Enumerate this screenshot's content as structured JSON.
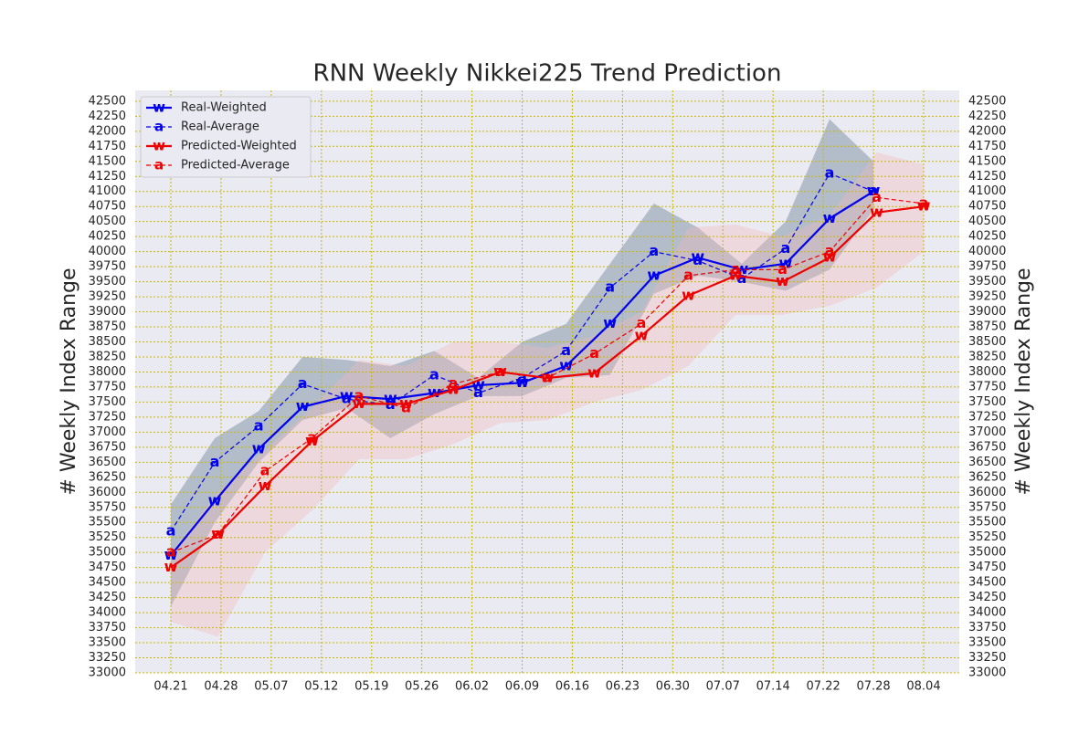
{
  "chart_data": {
    "type": "line",
    "title": "RNN Weekly Nikkei225 Trend Prediction",
    "ylabel": "# Weekly Index Range",
    "y2label": "# Weekly Index Range",
    "xticks": [
      {
        "value": 0,
        "label": "04.21"
      },
      {
        "value": 1,
        "label": "04.28"
      },
      {
        "value": 2,
        "label": "05.07"
      },
      {
        "value": 3,
        "label": "05.12"
      },
      {
        "value": 4,
        "label": "05.19"
      },
      {
        "value": 5,
        "label": "05.26"
      },
      {
        "value": 6,
        "label": "06.02"
      },
      {
        "value": 7,
        "label": "06.09"
      },
      {
        "value": 8,
        "label": "06.16"
      },
      {
        "value": 9,
        "label": "06.23"
      },
      {
        "value": 10,
        "label": "06.30"
      },
      {
        "value": 11,
        "label": "07.07"
      },
      {
        "value": 12,
        "label": "07.14"
      },
      {
        "value": 13,
        "label": "07.22"
      },
      {
        "value": 14,
        "label": "07.28"
      },
      {
        "value": 15,
        "label": "08.04"
      }
    ],
    "xlim": [
      -0.71,
      15.71
    ],
    "ylim": [
      33000,
      42680
    ],
    "yticks": [
      33000,
      33250,
      33500,
      33750,
      34000,
      34250,
      34500,
      34750,
      35000,
      35250,
      35500,
      35750,
      36000,
      36250,
      36500,
      36750,
      37000,
      37250,
      37500,
      37750,
      38000,
      38250,
      38500,
      38750,
      39000,
      39250,
      39500,
      39750,
      40000,
      40250,
      40500,
      40750,
      41000,
      41250,
      41500,
      41750,
      42000,
      42250,
      42500
    ],
    "y2lim": [
      33000,
      42680
    ],
    "y2ticks": [
      33000,
      33250,
      33500,
      33750,
      34000,
      34250,
      34500,
      34750,
      35000,
      35250,
      35500,
      35750,
      36000,
      36250,
      36500,
      36750,
      37000,
      37250,
      37500,
      37750,
      38000,
      38250,
      38500,
      38750,
      39000,
      39250,
      39500,
      39750,
      40000,
      40250,
      40500,
      40750,
      41000,
      41250,
      41500,
      41750,
      42000,
      42250,
      42500
    ],
    "grid": true,
    "legend": "upper left",
    "bands": [
      {
        "color": "#7a8fa0",
        "x": [
          0,
          0.875,
          1.75,
          2.625,
          3.5,
          4.375,
          5.25,
          6.125,
          7,
          7.875,
          8.75,
          9.625,
          10.5,
          11.375,
          12.25,
          13.125,
          14
        ],
        "upper": [
          35800,
          36900,
          37350,
          38250,
          38200,
          38100,
          38350,
          37900,
          38500,
          38800,
          39800,
          40800,
          40400,
          39800,
          40500,
          42200,
          41500
        ],
        "lower": [
          34100,
          35500,
          36500,
          37200,
          37400,
          36900,
          37300,
          37600,
          37600,
          37900,
          37950,
          39300,
          39600,
          39500,
          39350,
          39700,
          40700
        ]
      },
      {
        "color": "#f4b8b8",
        "x": [
          0,
          0.9375,
          1.875,
          2.8125,
          3.75,
          4.6875,
          5.625,
          6.5625,
          7.5,
          8.4375,
          9.375,
          10.3125,
          11.25,
          12.1875,
          13.125,
          14.0625,
          15
        ],
        "upper": [
          35000,
          36000,
          36700,
          37400,
          38200,
          38100,
          38500,
          38500,
          38400,
          38600,
          39000,
          40400,
          40450,
          40250,
          40600,
          41650,
          41450
        ],
        "lower": [
          33850,
          33600,
          35000,
          35700,
          36550,
          36550,
          36800,
          37150,
          37200,
          37500,
          37700,
          38100,
          38950,
          38950,
          39100,
          39400,
          40000
        ]
      }
    ],
    "series": [
      {
        "name": "Real-Weighted",
        "color": "#0000ee",
        "linestyle": "solid",
        "marker": "w",
        "x": [
          0,
          0.875,
          1.75,
          2.625,
          3.5,
          4.375,
          5.25,
          6.125,
          7,
          7.875,
          8.75,
          9.625,
          10.5,
          11.375,
          12.25,
          13.125,
          14
        ],
        "values": [
          34950,
          35850,
          36720,
          37420,
          37600,
          37550,
          37650,
          37780,
          37820,
          38100,
          38800,
          39600,
          39900,
          39700,
          39800,
          40550,
          41000
        ]
      },
      {
        "name": "Real-Average",
        "color": "#0000ee",
        "linestyle": "dashed",
        "marker": "a",
        "x": [
          0,
          0.875,
          1.75,
          2.625,
          3.5,
          4.375,
          5.25,
          6.125,
          7,
          7.875,
          8.75,
          9.625,
          10.5,
          11.375,
          12.25,
          13.125,
          14
        ],
        "values": [
          35350,
          36500,
          37100,
          37800,
          37550,
          37450,
          37950,
          37650,
          37900,
          38350,
          39400,
          40000,
          39850,
          39550,
          40050,
          41300,
          41000
        ]
      },
      {
        "name": "Predicted-Weighted",
        "color": "#ee0000",
        "linestyle": "solid",
        "marker": "w",
        "x": [
          0,
          0.9375,
          1.875,
          2.8125,
          3.75,
          4.6875,
          5.625,
          6.5625,
          7.5,
          8.4375,
          9.375,
          10.3125,
          11.25,
          12.1875,
          13.125,
          14.0625,
          15
        ],
        "values": [
          34750,
          35300,
          36100,
          36850,
          37470,
          37470,
          37700,
          38000,
          37900,
          37980,
          38600,
          39270,
          39600,
          39500,
          39900,
          40650,
          40750
        ]
      },
      {
        "name": "Predicted-Average",
        "color": "#ee0000",
        "linestyle": "dashed",
        "marker": "a",
        "x": [
          0,
          0.9375,
          1.875,
          2.8125,
          3.75,
          4.6875,
          5.625,
          6.5625,
          7.5,
          8.4375,
          9.375,
          10.3125,
          11.25,
          12.1875,
          13.125,
          14.0625,
          15
        ],
        "values": [
          35000,
          35300,
          36350,
          36900,
          37600,
          37400,
          37800,
          38000,
          37900,
          38300,
          38800,
          39600,
          39700,
          39700,
          40000,
          40900,
          40800
        ]
      }
    ]
  }
}
